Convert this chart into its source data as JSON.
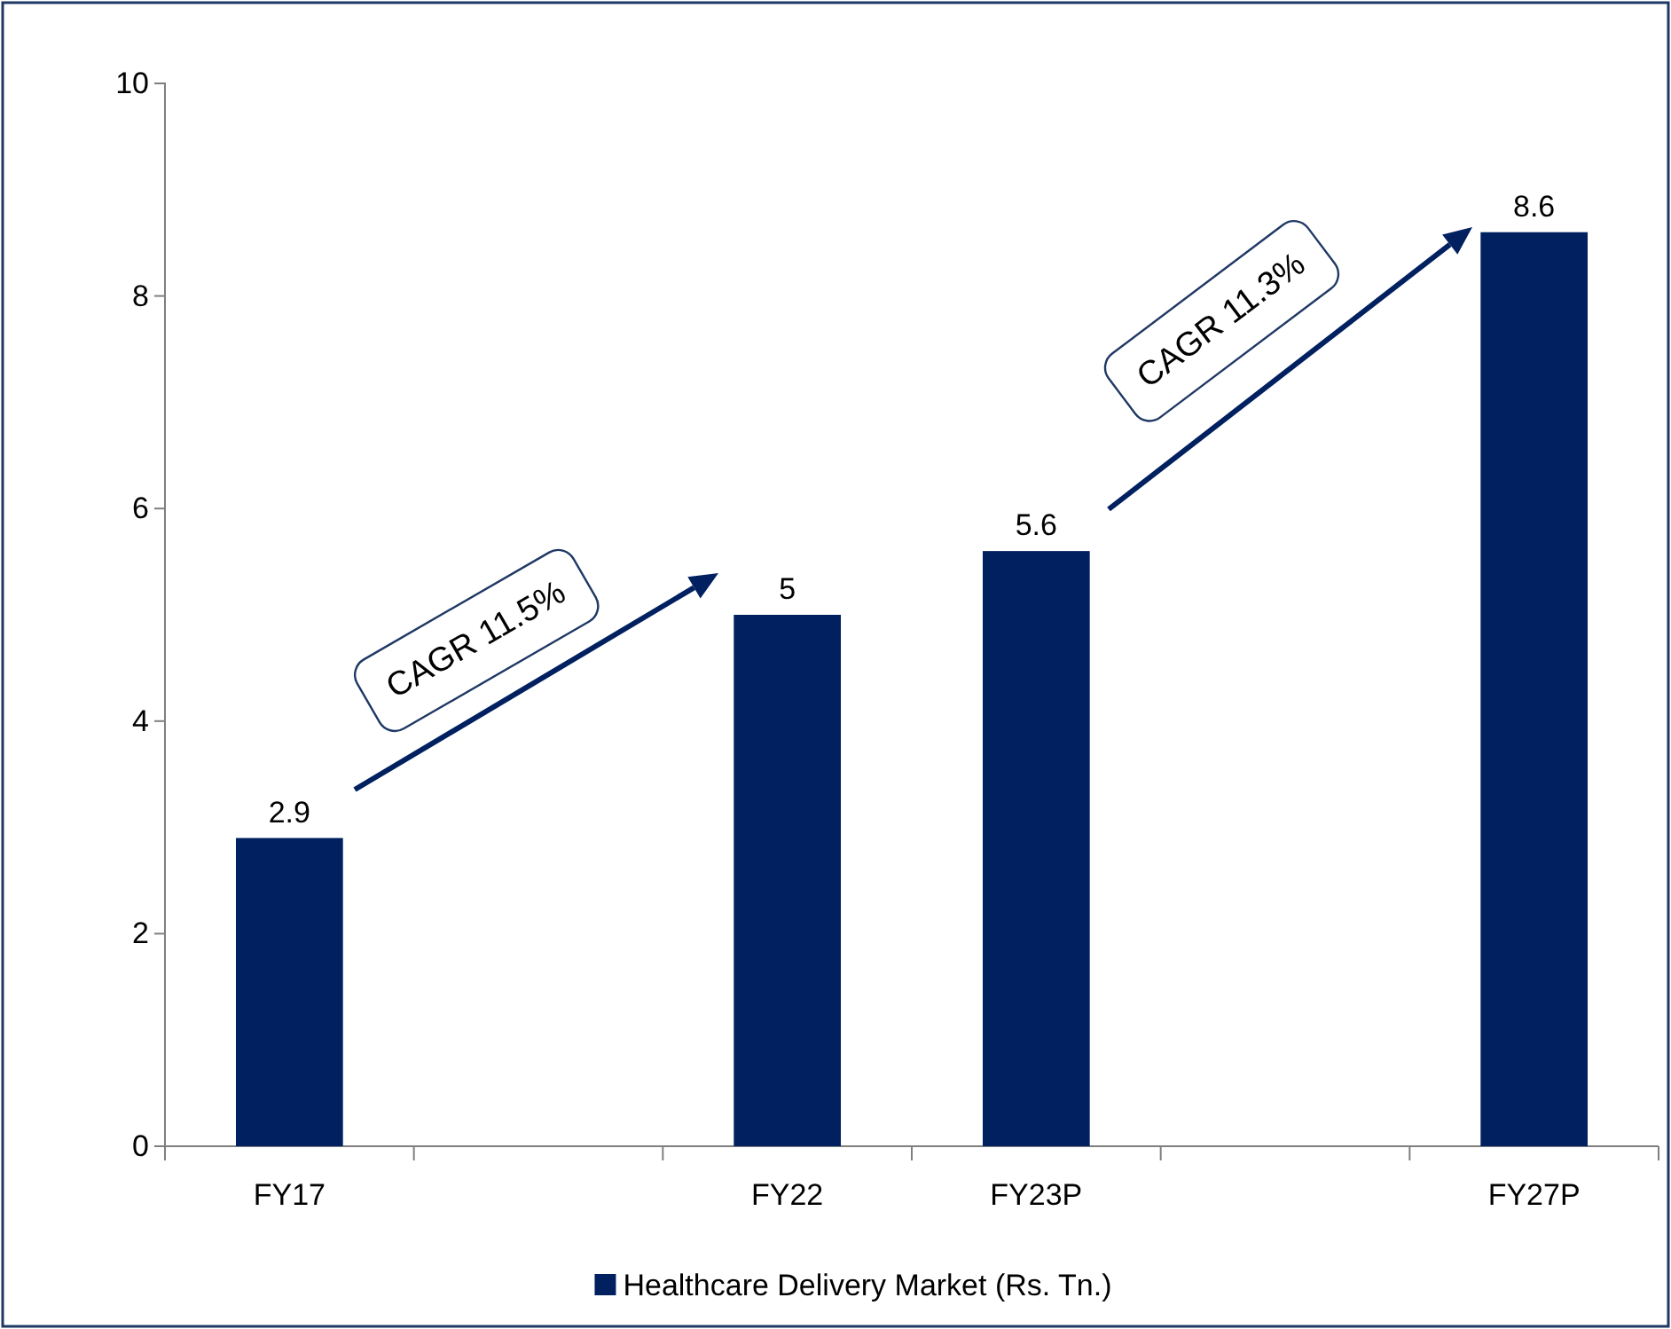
{
  "chart_data": {
    "type": "bar",
    "categories": [
      "FY17",
      null,
      "FY22",
      "FY23P",
      null,
      "FY27P"
    ],
    "series": [
      {
        "name": "Healthcare Delivery Market (Rs. Tn.)",
        "color": "#002060",
        "values": [
          2.9,
          null,
          5,
          5.6,
          null,
          8.6
        ]
      }
    ],
    "ylim": [
      0,
      10
    ],
    "yticks": [
      0,
      2,
      4,
      6,
      8,
      10
    ],
    "data_labels": true,
    "grid": false,
    "legend": "bottom",
    "annotations": [
      "CAGR 11.5%",
      "CAGR 11.3%"
    ]
  }
}
